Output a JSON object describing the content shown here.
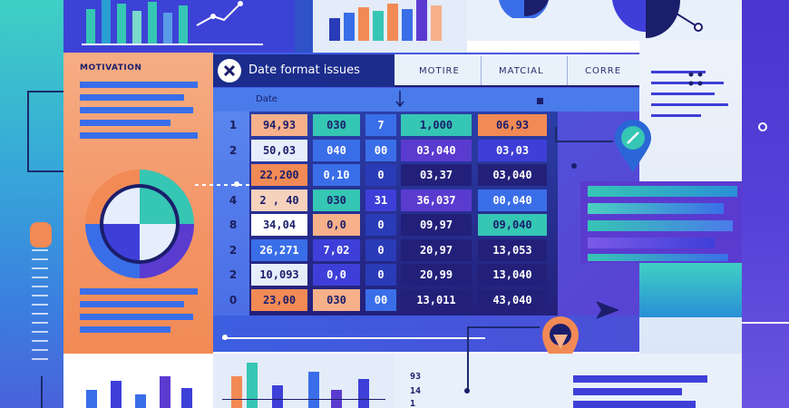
{
  "colors": {
    "navy": "#1b1e6b",
    "royal": "#3e3fd8",
    "blue": "#3a6ee8",
    "teal": "#36c6b4",
    "orange": "#f28a55",
    "peach": "#f6b08a",
    "purple": "#5a3bd0",
    "pale": "#e6f1fb"
  },
  "panel_title": "MOTIVATION",
  "dialog": {
    "close_icon": "x-icon",
    "title": "Date format issues",
    "tabs": [
      "MOTIRE",
      "MATCIAL",
      "CORRE"
    ],
    "subheader": "Date"
  },
  "table": {
    "rows": [
      {
        "num": "1",
        "cells": [
          "94,93",
          "030",
          "7",
          "1,000",
          "06,93"
        ]
      },
      {
        "num": "2",
        "cells": [
          "50,03",
          "040",
          "00",
          "03,040",
          "03,03"
        ]
      },
      {
        "num": "",
        "cells": [
          "22,200",
          "0,10",
          "0",
          "03,37",
          "03,040"
        ]
      },
      {
        "num": "4",
        "cells": [
          "2 , 40",
          "030",
          "31",
          "36,037",
          "00,040"
        ]
      },
      {
        "num": "8",
        "cells": [
          "34,04",
          "0,0",
          "0",
          "09,97",
          "09,040"
        ]
      },
      {
        "num": "2",
        "cells": [
          "26,271",
          "7,02",
          "0",
          "20,97",
          "13,053"
        ]
      },
      {
        "num": "2",
        "cells": [
          "10,093",
          "0,0",
          "0",
          "20,99",
          "13,040"
        ]
      },
      {
        "num": "0",
        "cells": [
          "23,00",
          "030",
          "00",
          "13,011",
          "43,040"
        ]
      }
    ]
  },
  "bottom_numbers": [
    "93",
    "14",
    "1"
  ]
}
